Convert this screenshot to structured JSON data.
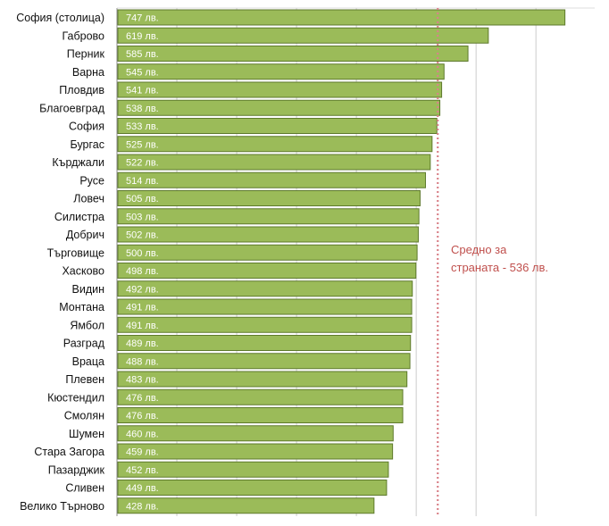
{
  "chart_data": {
    "type": "bar",
    "orientation": "horizontal",
    "categories": [
      "София (столица)",
      "Габрово",
      "Перник",
      "Варна",
      "Пловдив",
      "Благоевград",
      "София",
      "Бургас",
      "Кърджали",
      "Русе",
      "Ловеч",
      "Силистра",
      "Добрич",
      "Търговище",
      "Хасково",
      "Видин",
      "Монтана",
      "Ямбол",
      "Разград",
      "Враца",
      "Плевен",
      "Кюстендил",
      "Смолян",
      "Шумен",
      "Стара Загора",
      "Пазарджик",
      "Сливен",
      "Велико Търново"
    ],
    "values": [
      747,
      619,
      585,
      545,
      541,
      538,
      533,
      525,
      522,
      514,
      505,
      503,
      502,
      500,
      498,
      492,
      491,
      491,
      489,
      488,
      483,
      476,
      476,
      460,
      459,
      452,
      449,
      428
    ],
    "value_labels": [
      "747 лв.",
      "619 лв.",
      "585 лв.",
      "545 лв.",
      "541 лв.",
      "538 лв.",
      "533 лв.",
      "525 лв.",
      "522 лв.",
      "514 лв.",
      "505 лв.",
      "503 лв.",
      "502 лв.",
      "500 лв.",
      "498 лв.",
      "492 лв.",
      "491 лв.",
      "491 лв.",
      "489 лв.",
      "488 лв.",
      "483 лв.",
      "476 лв.",
      "476 лв.",
      "460 лв.",
      "459 лв.",
      "452 лв.",
      "449 лв.",
      "428 лв."
    ],
    "average": 536,
    "annotation": [
      "Средно за",
      "страната - 536 лв."
    ],
    "title": "",
    "xlabel": "",
    "ylabel": "",
    "xlim": [
      0,
      800
    ],
    "grid": true,
    "colors": {
      "bar_fill": "#9bbb59",
      "bar_stroke": "#5e7a2c",
      "average_line": "#d9828a",
      "annotation": "#c0504d",
      "plot_bg": "#eef1e8",
      "gridline": "#bfbfbf"
    }
  }
}
